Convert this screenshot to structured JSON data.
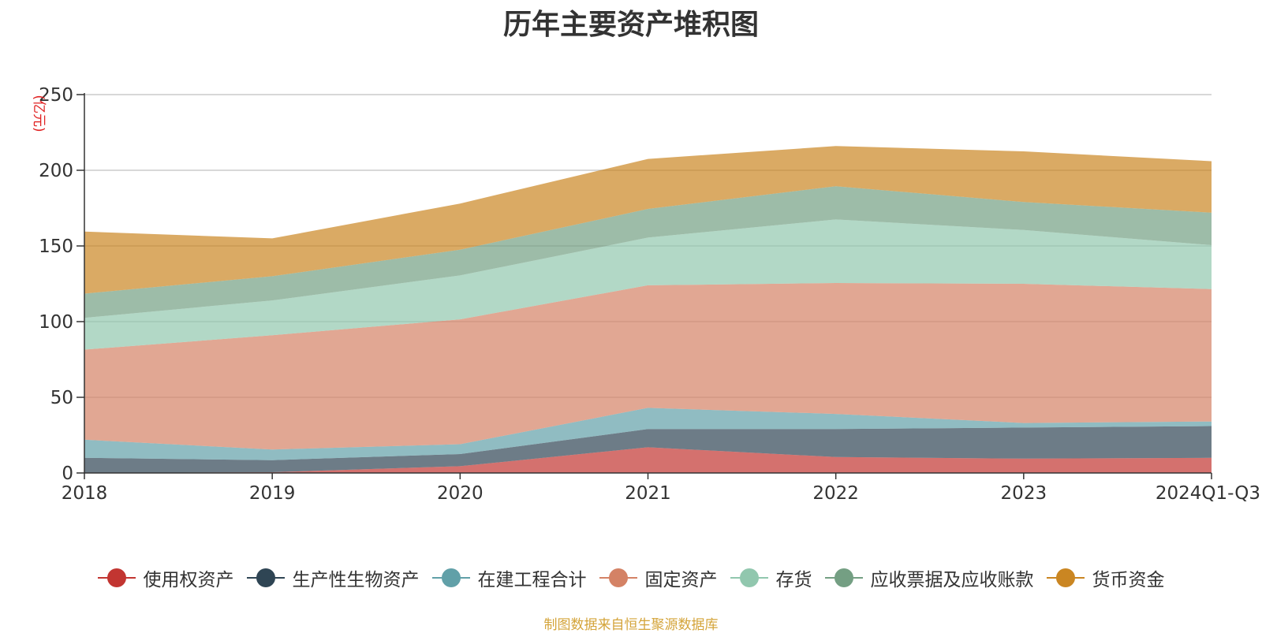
{
  "chart_data": {
    "type": "area",
    "stacked": true,
    "title": "历年主要资产堆积图",
    "unit_label": "(亿元)",
    "categories": [
      "2018",
      "2019",
      "2020",
      "2021",
      "2022",
      "2023",
      "2024Q1-Q3"
    ],
    "y_ticks": [
      "0",
      "50",
      "100",
      "150",
      "200",
      "250"
    ],
    "ylim": [
      0,
      250
    ],
    "series": [
      {
        "name": "使用权资产",
        "color": "#c23531",
        "values": [
          0,
          0.5,
          4.5,
          17,
          10.5,
          9.5,
          10
        ]
      },
      {
        "name": "生产性生物资产",
        "color": "#2f4554",
        "values": [
          10,
          8,
          8,
          12,
          18.5,
          20.5,
          21
        ]
      },
      {
        "name": "在建工程合计",
        "color": "#61a0a8",
        "values": [
          12,
          7,
          6.5,
          14,
          10,
          3,
          3
        ]
      },
      {
        "name": "固定资产",
        "color": "#d48265",
        "values": [
          59.5,
          75.5,
          82.5,
          81,
          86.5,
          92,
          87.5
        ]
      },
      {
        "name": "存货",
        "color": "#91c7ae",
        "values": [
          21,
          23,
          29,
          31.5,
          42,
          35.5,
          29
        ]
      },
      {
        "name": "应收票据及应收账款",
        "color": "#749f83",
        "values": [
          16,
          16,
          17,
          19,
          22,
          18.5,
          21.5
        ]
      },
      {
        "name": "货币资金",
        "color": "#ca8622",
        "values": [
          41,
          25,
          30.5,
          33,
          26.5,
          33.5,
          34
        ]
      }
    ],
    "legend_position": "bottom-center"
  },
  "footer": "制图数据来自恒生聚源数据库"
}
